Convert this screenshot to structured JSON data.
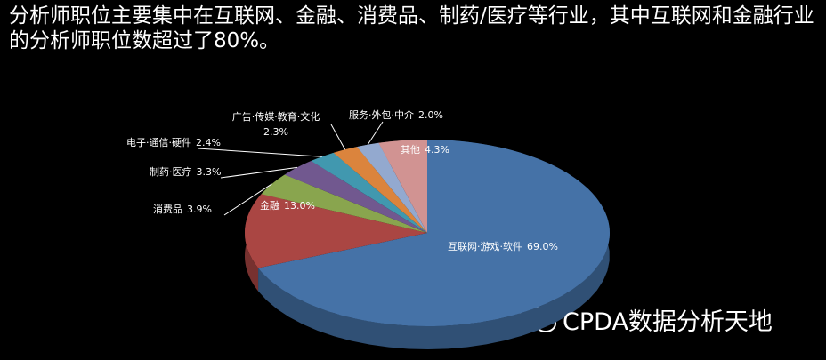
{
  "title": "分析师职位主要集中在互联网、金融、消费品、制药/医疗等行业，其中互联网和金融行业的分析师职位数超过了80%。",
  "watermark": "CPDA数据分析天地",
  "chart_data": {
    "type": "pie",
    "categories": [
      "互联网·游戏·软件",
      "金融",
      "消费品",
      "制药·医疗",
      "电子·通信·硬件",
      "广告·传媒·教育·文化",
      "服务·外包·中介",
      "其他"
    ],
    "values": [
      69.0,
      13.0,
      3.9,
      3.3,
      2.4,
      2.3,
      2.0,
      4.3
    ],
    "value_labels": [
      "69.0%",
      "13.0%",
      "3.9%",
      "3.3%",
      "2.4%",
      "2.3%",
      "2.0%",
      "4.3%"
    ],
    "colors": [
      "#4572a7",
      "#aa4643",
      "#89a54e",
      "#71588f",
      "#4198af",
      "#db843d",
      "#93a9cf",
      "#d19392"
    ]
  }
}
